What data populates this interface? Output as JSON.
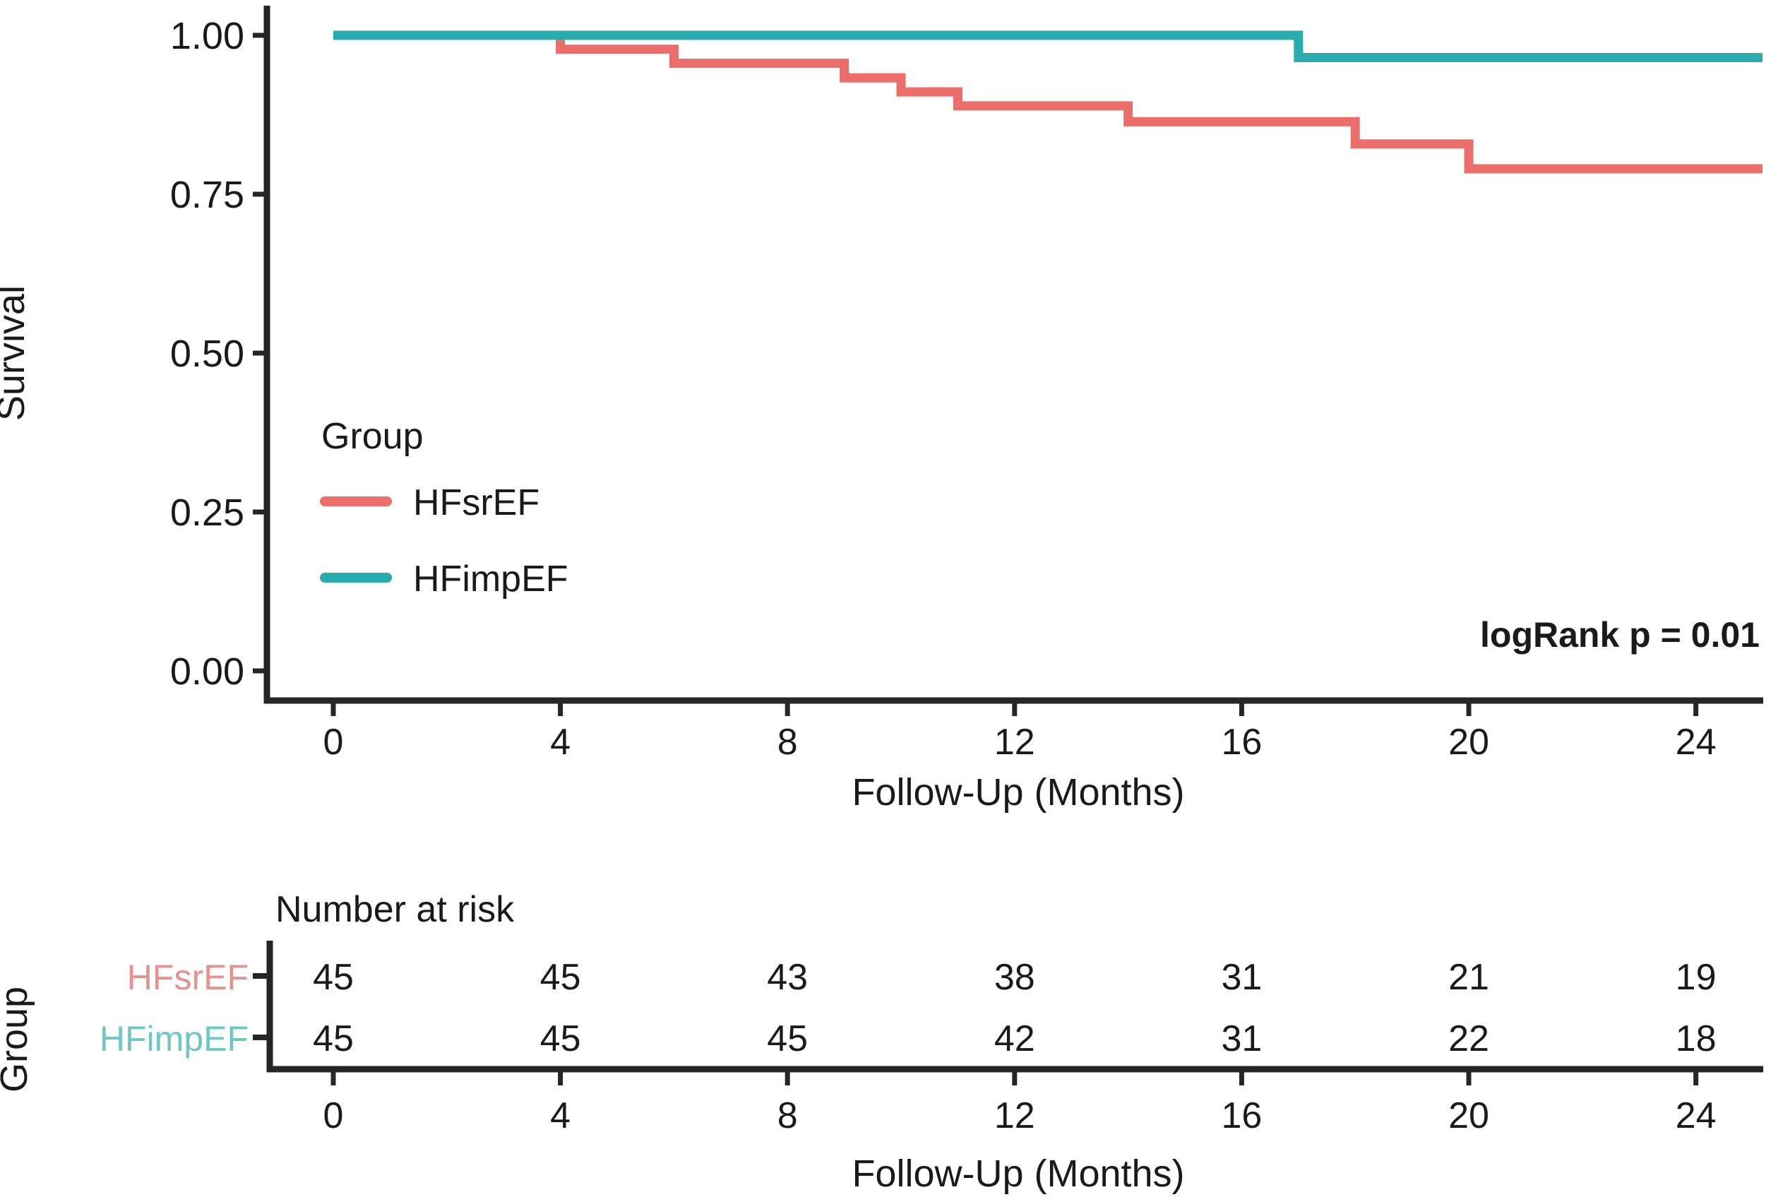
{
  "colors": {
    "hfsref_line": "#ec6e6a",
    "hfimpef_line": "#2aabad",
    "hfsref_muted": "#e59391",
    "hfimpef_muted": "#6cc8c3",
    "axis": "#262626",
    "text": "#1a1a1a"
  },
  "chart_data": {
    "type": "line",
    "subtype": "kaplan-meier-step",
    "title": "",
    "xlabel": "Follow-Up (Months)",
    "ylabel": "Survival",
    "xlim": [
      0,
      25.2
    ],
    "ylim": [
      0.0,
      1.0
    ],
    "x_ticks": [
      0,
      4,
      8,
      12,
      16,
      20,
      24
    ],
    "y_ticks": [
      "1.00",
      "0.75",
      "0.50",
      "0.25",
      "0.00"
    ],
    "y_tick_values": [
      1.0,
      0.75,
      0.5,
      0.25,
      0.0
    ],
    "grid": false,
    "legend": {
      "title": "Group",
      "position": "inside-left-middle",
      "entries": [
        {
          "label": "HFsrEF",
          "color": "#ec6e6a"
        },
        {
          "label": "HFimpEF",
          "color": "#2aabad"
        }
      ]
    },
    "annotation": "logRank p = 0.01",
    "series": [
      {
        "name": "HFsrEF",
        "color": "#ec6e6a",
        "steps": [
          [
            0,
            1.0
          ],
          [
            4,
            0.978
          ],
          [
            6,
            0.956
          ],
          [
            9,
            0.933
          ],
          [
            10,
            0.911
          ],
          [
            11,
            0.889
          ],
          [
            14,
            0.864
          ],
          [
            18,
            0.829
          ],
          [
            20,
            0.79
          ]
        ],
        "end_x": 25.2
      },
      {
        "name": "HFimpEF",
        "color": "#2aabad",
        "steps": [
          [
            0,
            1.0
          ],
          [
            17,
            0.965
          ]
        ],
        "end_x": 25.2
      }
    ],
    "risk_table": {
      "title": "Number at risk",
      "group_axis_label": "Group",
      "xlabel": "Follow-Up (Months)",
      "x_ticks": [
        0,
        4,
        8,
        12,
        16,
        20,
        24
      ],
      "rows": [
        {
          "label": "HFsrEF",
          "color": "#e59391",
          "values": [
            45,
            45,
            43,
            38,
            31,
            21,
            19
          ]
        },
        {
          "label": "HFimpEF",
          "color": "#6cc8c3",
          "values": [
            45,
            45,
            45,
            42,
            31,
            22,
            18
          ]
        }
      ]
    }
  }
}
